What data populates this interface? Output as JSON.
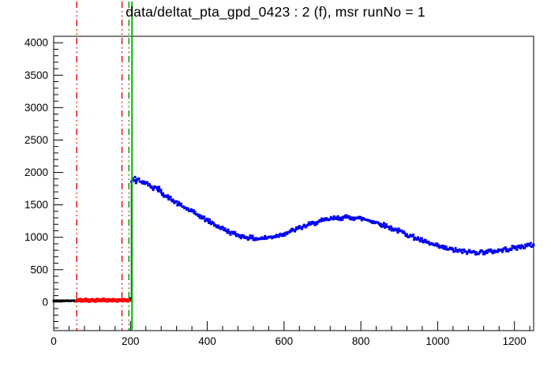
{
  "chart_data": {
    "type": "scatter",
    "title": "data/deltat_pta_gpd_0423 : 2 (f), msr runNo = 1",
    "grid": false,
    "legend": "none",
    "background": "#ffffff",
    "frame_color": "#000000",
    "axes": {
      "xlim": [
        0,
        1250
      ],
      "ylim": [
        -440,
        4100
      ],
      "x_major_ticks": [
        0,
        200,
        400,
        600,
        800,
        1000,
        1200
      ],
      "x_tick_labels": [
        "0",
        "200",
        "400",
        "600",
        "800",
        "1000",
        "1200"
      ],
      "x_minor_step": 40,
      "y_major_ticks": [
        0,
        500,
        1000,
        1500,
        2000,
        2500,
        3000,
        3500,
        4000
      ],
      "y_tick_labels": [
        "0",
        "500",
        "1000",
        "1500",
        "2000",
        "2500",
        "3000",
        "3500",
        "4000"
      ],
      "y_minor_step": 100,
      "xlabel": "",
      "ylabel": ""
    },
    "vlines": [
      {
        "name": "bkg-range-start-line",
        "x": 60,
        "color": "#e60000",
        "style": "dashdotdot",
        "width": 1.4,
        "full": true
      },
      {
        "name": "bkg-range-end-line",
        "x": 178,
        "color": "#e60000",
        "style": "dashdotdot",
        "width": 1.4,
        "full": true
      },
      {
        "name": "data-range-line",
        "x": 196,
        "color": "#008a00",
        "style": "dashdotdot",
        "width": 1.4,
        "full": true
      },
      {
        "name": "histogram-rise-line",
        "x": 203,
        "color": "#000000",
        "style": "solid",
        "width": 2,
        "y1": 0,
        "y2": 1890
      },
      {
        "name": "t0-line",
        "x": 204,
        "color": "#00bb00",
        "style": "solid",
        "width": 2,
        "full": true
      }
    ],
    "series": [
      {
        "name": "pre-t0-counts-black",
        "color": "#000000",
        "marker_px": 3,
        "noise": 5,
        "subsample": 2,
        "points": [
          [
            0,
            18
          ],
          [
            6,
            21
          ],
          [
            12,
            19
          ],
          [
            18,
            22
          ],
          [
            24,
            20
          ],
          [
            30,
            18
          ],
          [
            36,
            21
          ],
          [
            42,
            19
          ],
          [
            48,
            22
          ],
          [
            54,
            20
          ],
          [
            58,
            19
          ]
        ]
      },
      {
        "name": "t0-cluster-black",
        "color": "#000000",
        "marker_px": 3,
        "noise": 6,
        "subsample": 1.5,
        "points": [
          [
            196,
            26
          ],
          [
            199,
            42
          ],
          [
            202,
            58
          ]
        ]
      },
      {
        "name": "background-window-red",
        "color": "#ff0000",
        "marker_px": 4,
        "noise": 7,
        "subsample": 3,
        "points": [
          [
            60,
            18
          ],
          [
            63,
            35
          ],
          [
            66,
            22
          ],
          [
            70,
            41
          ],
          [
            73,
            15
          ],
          [
            76,
            30
          ],
          [
            80,
            24
          ],
          [
            83,
            45
          ],
          [
            86,
            20
          ],
          [
            90,
            33
          ],
          [
            93,
            12
          ],
          [
            96,
            28
          ],
          [
            100,
            38
          ],
          [
            103,
            22
          ],
          [
            106,
            30
          ],
          [
            110,
            16
          ],
          [
            113,
            42
          ],
          [
            116,
            25
          ],
          [
            120,
            34
          ],
          [
            123,
            19
          ],
          [
            126,
            29
          ],
          [
            130,
            44
          ],
          [
            133,
            23
          ],
          [
            136,
            31
          ],
          [
            140,
            15
          ],
          [
            143,
            37
          ],
          [
            146,
            26
          ],
          [
            150,
            33
          ],
          [
            153,
            18
          ],
          [
            156,
            40
          ],
          [
            160,
            24
          ],
          [
            163,
            30
          ],
          [
            166,
            14
          ],
          [
            170,
            36
          ],
          [
            173,
            27
          ],
          [
            176,
            32
          ],
          [
            180,
            20
          ],
          [
            183,
            38
          ],
          [
            186,
            25
          ],
          [
            190,
            30
          ],
          [
            193,
            17
          ],
          [
            196,
            28
          ]
        ]
      },
      {
        "name": "decay-histogram-blue",
        "color": "#0000f0",
        "marker_px": 3,
        "noise": 36,
        "subsample": 2.2,
        "points": [
          [
            203,
            1855
          ],
          [
            206,
            1905
          ],
          [
            209,
            1872
          ],
          [
            212,
            1928
          ],
          [
            215,
            1848
          ],
          [
            218,
            1892
          ],
          [
            222,
            1902
          ],
          [
            226,
            1858
          ],
          [
            230,
            1842
          ],
          [
            234,
            1860
          ],
          [
            238,
            1825
          ],
          [
            242,
            1838
          ],
          [
            246,
            1802
          ],
          [
            250,
            1815
          ],
          [
            255,
            1782
          ],
          [
            260,
            1760
          ],
          [
            265,
            1770
          ],
          [
            270,
            1735
          ],
          [
            275,
            1745
          ],
          [
            280,
            1690
          ],
          [
            285,
            1675
          ],
          [
            290,
            1642
          ],
          [
            295,
            1620
          ],
          [
            300,
            1614
          ],
          [
            306,
            1582
          ],
          [
            312,
            1558
          ],
          [
            318,
            1542
          ],
          [
            324,
            1512
          ],
          [
            330,
            1494
          ],
          [
            336,
            1472
          ],
          [
            342,
            1456
          ],
          [
            348,
            1434
          ],
          [
            354,
            1416
          ],
          [
            360,
            1400
          ],
          [
            366,
            1372
          ],
          [
            372,
            1354
          ],
          [
            378,
            1342
          ],
          [
            384,
            1312
          ],
          [
            390,
            1292
          ],
          [
            396,
            1274
          ],
          [
            402,
            1256
          ],
          [
            408,
            1234
          ],
          [
            414,
            1216
          ],
          [
            420,
            1194
          ],
          [
            426,
            1174
          ],
          [
            432,
            1156
          ],
          [
            438,
            1140
          ],
          [
            444,
            1120
          ],
          [
            450,
            1102
          ],
          [
            456,
            1086
          ],
          [
            462,
            1072
          ],
          [
            468,
            1056
          ],
          [
            474,
            1044
          ],
          [
            480,
            1034
          ],
          [
            486,
            1024
          ],
          [
            492,
            1014
          ],
          [
            498,
            1006
          ],
          [
            504,
            1000
          ],
          [
            510,
            993
          ],
          [
            516,
            987
          ],
          [
            522,
            983
          ],
          [
            528,
            980
          ],
          [
            534,
            980
          ],
          [
            540,
            982
          ],
          [
            546,
            986
          ],
          [
            552,
            990
          ],
          [
            558,
            995
          ],
          [
            564,
            1001
          ],
          [
            570,
            1008
          ],
          [
            576,
            1016
          ],
          [
            582,
            1025
          ],
          [
            588,
            1035
          ],
          [
            594,
            1045
          ],
          [
            600,
            1056
          ],
          [
            606,
            1068
          ],
          [
            612,
            1080
          ],
          [
            618,
            1093
          ],
          [
            624,
            1106
          ],
          [
            630,
            1119
          ],
          [
            636,
            1132
          ],
          [
            642,
            1145
          ],
          [
            648,
            1158
          ],
          [
            654,
            1171
          ],
          [
            660,
            1183
          ],
          [
            666,
            1195
          ],
          [
            672,
            1207
          ],
          [
            678,
            1218
          ],
          [
            684,
            1229
          ],
          [
            690,
            1239
          ],
          [
            696,
            1248
          ],
          [
            702,
            1257
          ],
          [
            708,
            1265
          ],
          [
            714,
            1273
          ],
          [
            720,
            1280
          ],
          [
            726,
            1286
          ],
          [
            732,
            1291
          ],
          [
            738,
            1296
          ],
          [
            744,
            1299
          ],
          [
            750,
            1302
          ],
          [
            756,
            1304
          ],
          [
            762,
            1305
          ],
          [
            768,
            1305
          ],
          [
            774,
            1304
          ],
          [
            780,
            1302
          ],
          [
            786,
            1299
          ],
          [
            792,
            1295
          ],
          [
            798,
            1290
          ],
          [
            804,
            1284
          ],
          [
            810,
            1277
          ],
          [
            816,
            1269
          ],
          [
            822,
            1260
          ],
          [
            828,
            1250
          ],
          [
            834,
            1240
          ],
          [
            840,
            1228
          ],
          [
            846,
            1216
          ],
          [
            852,
            1204
          ],
          [
            858,
            1191
          ],
          [
            864,
            1177
          ],
          [
            870,
            1163
          ],
          [
            876,
            1149
          ],
          [
            882,
            1134
          ],
          [
            888,
            1121
          ],
          [
            894,
            1108
          ],
          [
            900,
            1095
          ],
          [
            910,
            1070
          ],
          [
            920,
            1045
          ],
          [
            930,
            1020
          ],
          [
            940,
            995
          ],
          [
            950,
            970
          ],
          [
            960,
            945
          ],
          [
            970,
            922
          ],
          [
            980,
            900
          ],
          [
            990,
            880
          ],
          [
            1000,
            862
          ],
          [
            1010,
            845
          ],
          [
            1020,
            830
          ],
          [
            1030,
            816
          ],
          [
            1040,
            804
          ],
          [
            1050,
            794
          ],
          [
            1060,
            786
          ],
          [
            1070,
            779
          ],
          [
            1080,
            774
          ],
          [
            1090,
            771
          ],
          [
            1100,
            770
          ],
          [
            1110,
            770
          ],
          [
            1120,
            772
          ],
          [
            1130,
            776
          ],
          [
            1140,
            781
          ],
          [
            1150,
            788
          ],
          [
            1160,
            796
          ],
          [
            1170,
            805
          ],
          [
            1180,
            815
          ],
          [
            1190,
            825
          ],
          [
            1200,
            836
          ],
          [
            1210,
            846
          ],
          [
            1220,
            856
          ],
          [
            1230,
            866
          ],
          [
            1240,
            875
          ],
          [
            1250,
            883
          ]
        ]
      }
    ]
  }
}
